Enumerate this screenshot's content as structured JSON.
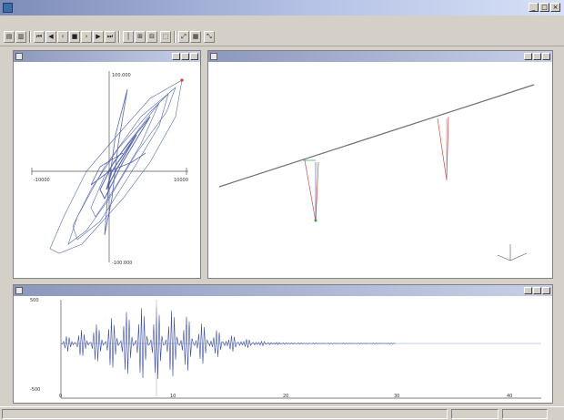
{
  "window": {
    "title": "",
    "min_glyph": "_",
    "max_glyph": "□",
    "close_glyph": "×"
  },
  "menu": [
    {
      "label": ""
    },
    {
      "label": ""
    },
    {
      "label": ""
    },
    {
      "label": ""
    },
    {
      "label": ""
    }
  ],
  "toolbar": {
    "buttons": [
      {
        "glyph": "▤",
        "icon": "open-file-icon"
      },
      {
        "glyph": "▥",
        "icon": "save-icon"
      },
      {
        "glyph": "⏮",
        "icon": "rewind-icon"
      },
      {
        "glyph": "◀",
        "icon": "step-back-icon"
      },
      {
        "glyph": "‹",
        "icon": "frame-back-icon"
      },
      {
        "glyph": "■",
        "icon": "stop-icon"
      },
      {
        "glyph": "›",
        "icon": "frame-forward-icon"
      },
      {
        "glyph": "▶",
        "icon": "play-icon"
      },
      {
        "glyph": "⏭",
        "icon": "fast-forward-icon"
      },
      {
        "glyph": "│",
        "icon": "cursor-icon"
      },
      {
        "glyph": "⊞",
        "icon": "zoom-fit-icon"
      },
      {
        "glyph": "⊟",
        "icon": "zoom-out-icon"
      },
      {
        "glyph": "⬚",
        "icon": "zoom-box-icon"
      },
      {
        "glyph": "⤢",
        "icon": "axis-icon"
      },
      {
        "glyph": "▦",
        "icon": "grid-icon"
      },
      {
        "glyph": "⤡",
        "icon": "reset-view-icon"
      }
    ]
  },
  "panels": {
    "hysteresis": {
      "title": ""
    },
    "view3d": {
      "title": ""
    },
    "timehistory": {
      "title": ""
    }
  },
  "hysteresis_chart": {
    "x_ticks": [
      "-10000",
      "10000"
    ],
    "y_ticks": [
      "100.000",
      "-100.000"
    ]
  },
  "timeseries_chart": {
    "y_ticks": [
      "500",
      "-500"
    ],
    "x_ticks": [
      "0",
      "10",
      "20",
      "30",
      "40"
    ]
  },
  "status": [
    "",
    "",
    ""
  ],
  "colors": {
    "trace": "#3b4ea3",
    "cursor_pt": "#e03030",
    "pier_red": "#d04040",
    "pier_green": "#40a040",
    "deck": "#707070"
  }
}
